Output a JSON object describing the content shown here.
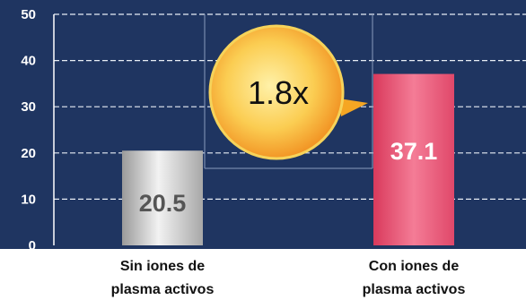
{
  "chart_data": {
    "type": "bar",
    "categories": [
      [
        "Sin iones de",
        "plasma activos"
      ],
      [
        "Con iones de",
        "plasma activos"
      ]
    ],
    "values": [
      20.5,
      37.1
    ],
    "value_labels": [
      "20.5",
      "37.1"
    ],
    "ylim": [
      0,
      50
    ],
    "yticks": [
      0,
      10,
      20,
      30,
      40,
      50
    ],
    "grid": true,
    "annotation": "1.8x",
    "colors": {
      "background": "#1f3561",
      "grid": "#e8edf5",
      "bar_1": "#c9c9c9",
      "bar_2": "#ea4f6f",
      "label_1": "#555555",
      "label_2": "#ffffff",
      "badge": "#f7a531"
    }
  }
}
